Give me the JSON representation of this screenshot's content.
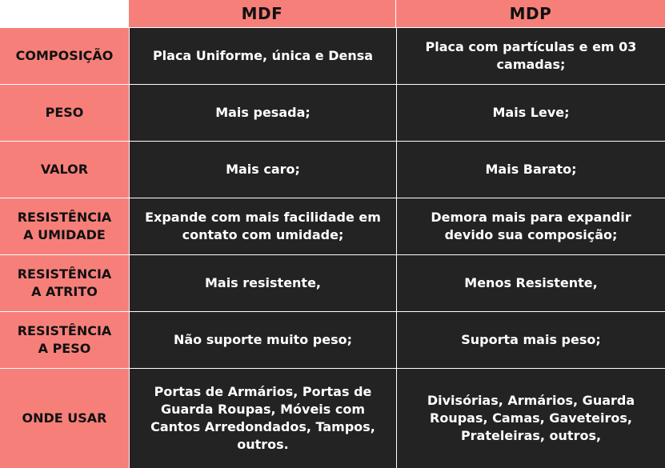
{
  "colors": {
    "header_bg": "#f77f7a",
    "cell_bg": "#232323",
    "cell_text": "#ffffff",
    "header_text": "#111111"
  },
  "table": {
    "columns": [
      "MDF",
      "MDP"
    ],
    "rows": [
      {
        "label": "COMPOSIÇÃO",
        "mdf": "Placa Uniforme, única e Densa",
        "mdp": "Placa com partículas e em 03\ncamadas;"
      },
      {
        "label": "PESO",
        "mdf": "Mais pesada;",
        "mdp": "Mais Leve;"
      },
      {
        "label": "VALOR",
        "mdf": "Mais caro;",
        "mdp": "Mais Barato;"
      },
      {
        "label": "RESISTÊNCIA\nA UMIDADE",
        "mdf": "Expande com mais facilidade em\ncontato com umidade;",
        "mdp": "Demora mais para expandir\ndevido sua composição;"
      },
      {
        "label": "RESISTÊNCIA\nA ATRITO",
        "mdf": "Mais resistente,",
        "mdp": "Menos Resistente,"
      },
      {
        "label": "RESISTÊNCIA\nA PESO",
        "mdf": "Não suporte muito peso;",
        "mdp": "Suporta mais peso;"
      },
      {
        "label": "ONDE USAR",
        "mdf": "Portas de Armários, Portas de\nGuarda Roupas, Móveis com\nCantos Arredondados, Tampos,\noutros.",
        "mdp": "Divisórias, Armários, Guarda\nRoupas, Camas, Gaveteiros,\nPrateleiras, outros,"
      }
    ]
  }
}
